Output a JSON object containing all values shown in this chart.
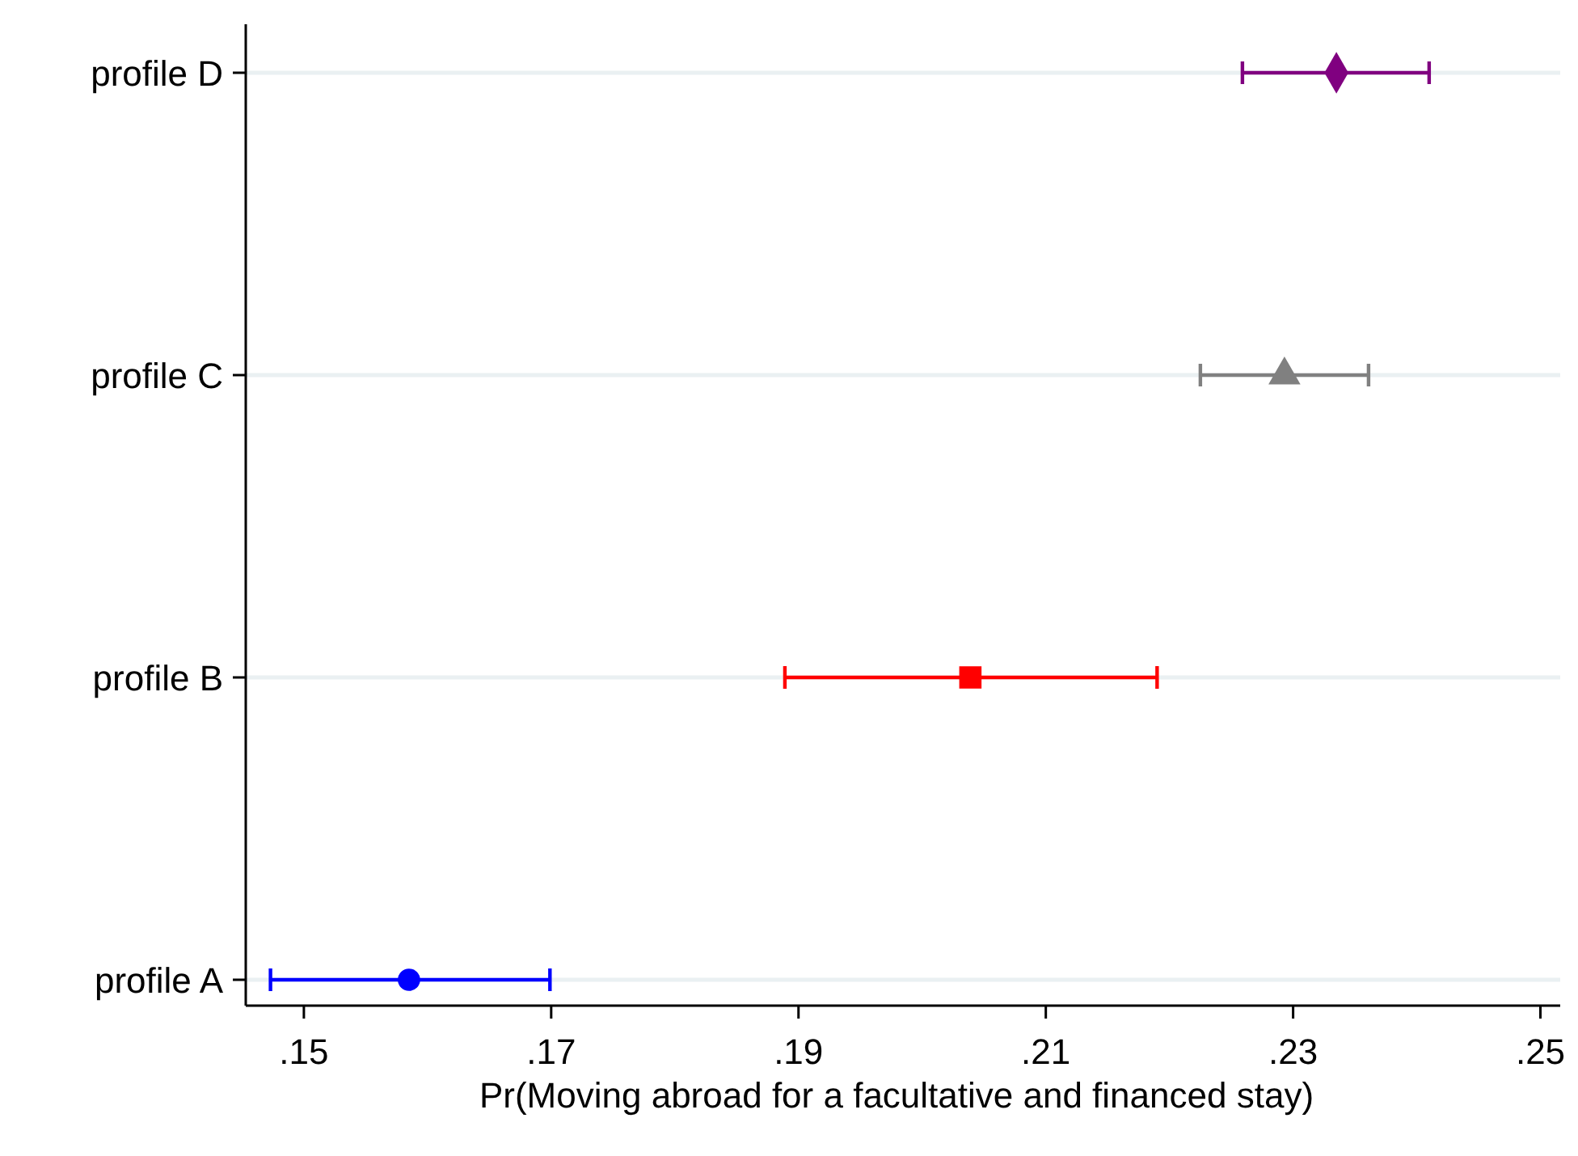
{
  "chart_data": {
    "type": "scatter",
    "orientation": "horizontal",
    "xlabel": "Pr(Moving abroad for a facultative and financed stay)",
    "categories": [
      "profile D",
      "profile C",
      "profile B",
      "profile A"
    ],
    "xlim": [
      0.1453,
      0.2516
    ],
    "xticks": [
      {
        "value": 0.15,
        "label": ".15"
      },
      {
        "value": 0.17,
        "label": ".17"
      },
      {
        "value": 0.19,
        "label": ".19"
      },
      {
        "value": 0.21,
        "label": ".21"
      },
      {
        "value": 0.23,
        "label": ".23"
      },
      {
        "value": 0.25,
        "label": ".25"
      }
    ],
    "grid": "y",
    "series": [
      {
        "color": "#800080",
        "marker": "diamond",
        "values": [
          0.2335,
          null,
          null,
          null
        ],
        "errors": [
          [
            0.2259,
            0.241
          ],
          null,
          null,
          null
        ]
      },
      {
        "color": "#808080",
        "marker": "triangle",
        "values": [
          null,
          0.2293,
          null,
          null
        ],
        "errors": [
          null,
          [
            0.2225,
            0.2361
          ],
          null,
          null
        ]
      },
      {
        "color": "#ff0000",
        "marker": "square",
        "values": [
          null,
          null,
          0.2039,
          null
        ],
        "errors": [
          null,
          null,
          [
            0.1889,
            0.219
          ],
          null
        ]
      },
      {
        "color": "#0000ff",
        "marker": "circle",
        "values": [
          null,
          null,
          null,
          0.1585
        ],
        "errors": [
          null,
          null,
          null,
          [
            0.1473,
            0.1699
          ]
        ]
      }
    ]
  }
}
